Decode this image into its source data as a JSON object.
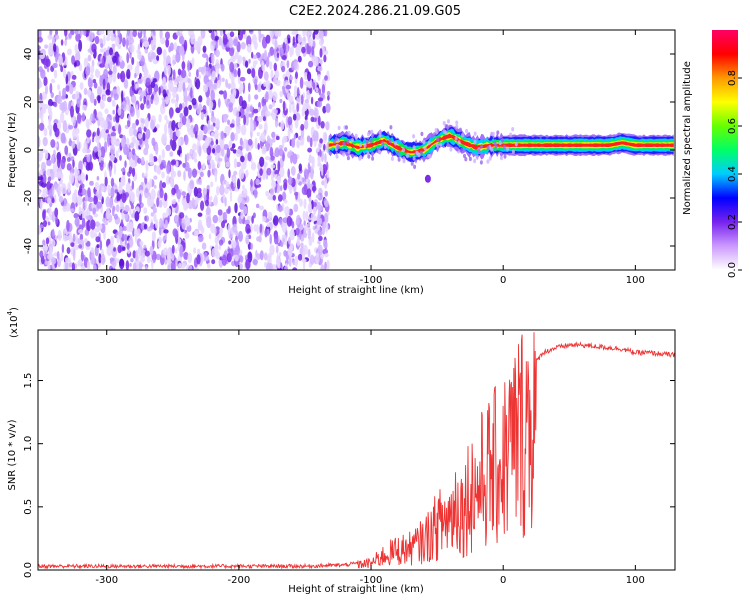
{
  "figure": {
    "title": "C2E2.2024.286.21.09.G05"
  },
  "chart_data": [
    {
      "type": "heatmap",
      "xlabel": "Height of straight line (km)",
      "ylabel": "Frequency (Hz)",
      "xlim": [
        -352,
        130
      ],
      "ylim": [
        -50,
        50
      ],
      "xticks": [
        -300,
        -200,
        -100,
        0,
        100
      ],
      "yticks": [
        -40,
        -20,
        0,
        20,
        40
      ],
      "noise_region_x": [
        -352,
        -132
      ],
      "ridge_line": {
        "x": [
          -132,
          -120,
          -110,
          -100,
          -90,
          -80,
          -70,
          -60,
          -50,
          -40,
          -30,
          -20,
          -10,
          0,
          20,
          40,
          60,
          80,
          90,
          100,
          130
        ],
        "frequency": [
          2,
          3,
          1,
          2,
          4,
          1,
          -1,
          0,
          4,
          6,
          3,
          1,
          2,
          2,
          2,
          2,
          2,
          2,
          3,
          2,
          2
        ]
      },
      "colorbar": {
        "label": "Normalized spectral amplitude",
        "range": [
          0.0,
          1.0
        ],
        "ticks": [
          0.0,
          0.2,
          0.4,
          0.6,
          0.8
        ],
        "tick_labels": [
          "0.0",
          "0.2",
          "0.4",
          "0.6",
          "0.8"
        ],
        "colormap": [
          "#ffffff",
          "#cc99ff",
          "#7722ee",
          "#0000ff",
          "#00ccff",
          "#00ff66",
          "#66ff00",
          "#ffff00",
          "#ff9900",
          "#ff0000",
          "#ff0066"
        ]
      }
    },
    {
      "type": "line",
      "xlabel": "Height of straight line (km)",
      "ylabel": "SNR (10 * v/v)",
      "y_multiplier_label": "(x10",
      "y_multiplier_exp": "4",
      "y_multiplier_close": ")",
      "xlim": [
        -352,
        130
      ],
      "ylim": [
        0,
        1.9
      ],
      "xticks": [
        -300,
        -200,
        -100,
        0,
        100
      ],
      "yticks": [
        0,
        0.5,
        1.0,
        1.5
      ],
      "ytick_labels": [
        "0.0",
        "0.5",
        "1.0",
        "1.5"
      ],
      "color": "#ee3333",
      "series": [
        {
          "x": [
            -352,
            -300,
            -250,
            -200,
            -150,
            -120,
            -100,
            -90,
            -80,
            -70,
            -60,
            -50,
            -40,
            -35,
            -30,
            -25,
            -20,
            -15,
            -10,
            -5,
            0,
            5,
            10,
            15,
            20,
            25,
            30,
            40,
            50,
            60,
            70,
            80,
            90,
            100,
            110,
            120,
            130
          ],
          "values": [
            0.03,
            0.03,
            0.03,
            0.03,
            0.03,
            0.04,
            0.07,
            0.15,
            0.2,
            0.22,
            0.3,
            0.45,
            0.55,
            0.7,
            0.6,
            0.85,
            0.8,
            0.95,
            1.0,
            1.05,
            1.1,
            1.25,
            1.35,
            1.45,
            1.55,
            1.65,
            1.72,
            1.76,
            1.78,
            1.78,
            1.77,
            1.76,
            1.75,
            1.72,
            1.72,
            1.71,
            1.7
          ]
        }
      ]
    }
  ]
}
